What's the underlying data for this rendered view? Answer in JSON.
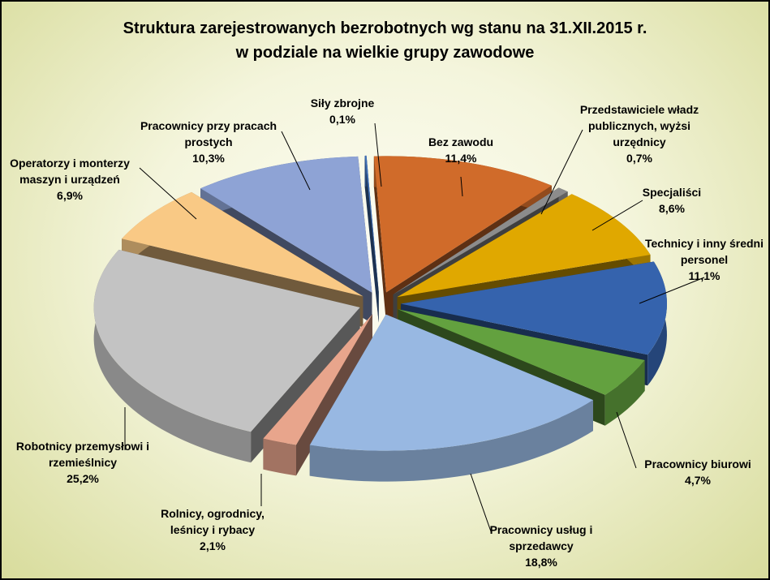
{
  "chart_data": {
    "type": "pie",
    "title_line1": "Struktura zarejestrowanych bezrobotnych wg stanu na 31.XII.2015 r.",
    "title_line2": "w podziale na wielkie grupy zawodowe",
    "slices": [
      {
        "name": "Siły zbrojne",
        "value": 0.1,
        "label": "0,1%",
        "color": "#3f6fb5"
      },
      {
        "name": "Bez zawodu",
        "value": 11.4,
        "label": "11,4%",
        "color": "#d06b2a"
      },
      {
        "name": "Przedstawiciele władz publicznych, wyżsi urzędnicy",
        "value": 0.7,
        "label": "0,7%",
        "color": "#8c8c8c"
      },
      {
        "name": "Specjaliści",
        "value": 8.6,
        "label": "8,6%",
        "color": "#e0a800"
      },
      {
        "name": "Technicy i inny średni personel",
        "value": 11.1,
        "label": "11,1%",
        "color": "#3563ad"
      },
      {
        "name": "Pracownicy biurowi",
        "value": 4.7,
        "label": "4,7%",
        "color": "#63a13f"
      },
      {
        "name": "Pracownicy usług i sprzedawcy",
        "value": 18.8,
        "label": "18,8%",
        "color": "#98b8e2"
      },
      {
        "name": "Rolnicy, ogrodnicy, leśnicy i rybacy",
        "value": 2.1,
        "label": "2,1%",
        "color": "#e8a58c"
      },
      {
        "name": "Robotnicy przemysłowi i rzemieślnicy",
        "value": 25.2,
        "label": "25,2%",
        "color": "#c3c3c3"
      },
      {
        "name": "Operatorzy i monterzy maszyn i urządzeń",
        "value": 6.9,
        "label": "6,9%",
        "color": "#f9c985"
      },
      {
        "name": "Pracownicy przy pracach prostych",
        "value": 10.3,
        "label": "10,3%",
        "color": "#8ea3d5"
      }
    ],
    "label_lines": [
      [
        "Siły zbrojne",
        "0,1%"
      ],
      [
        "Bez zawodu",
        "11,4%"
      ],
      [
        "Przedstawiciele władz",
        "publicznych, wyżsi",
        "urzędnicy",
        "0,7%"
      ],
      [
        "Specjaliści",
        "8,6%"
      ],
      [
        "Technicy i inny średni",
        "personel",
        "11,1%"
      ],
      [
        "Pracownicy biurowi",
        "4,7%"
      ],
      [
        "Pracownicy usług i",
        "sprzedawcy",
        "18,8%"
      ],
      [
        "Rolnicy, ogrodnicy,",
        "leśnicy i rybacy",
        "2,1%"
      ],
      [
        "Robotnicy przemysłowi i",
        "rzemieślnicy",
        "25,2%"
      ],
      [
        "Operatorzy i monterzy",
        "maszyn i urządzeń",
        "6,9%"
      ],
      [
        "Pracownicy przy pracach",
        "prostych",
        "10,3%"
      ]
    ],
    "style": "exploded 3d pie",
    "legend": "none"
  }
}
